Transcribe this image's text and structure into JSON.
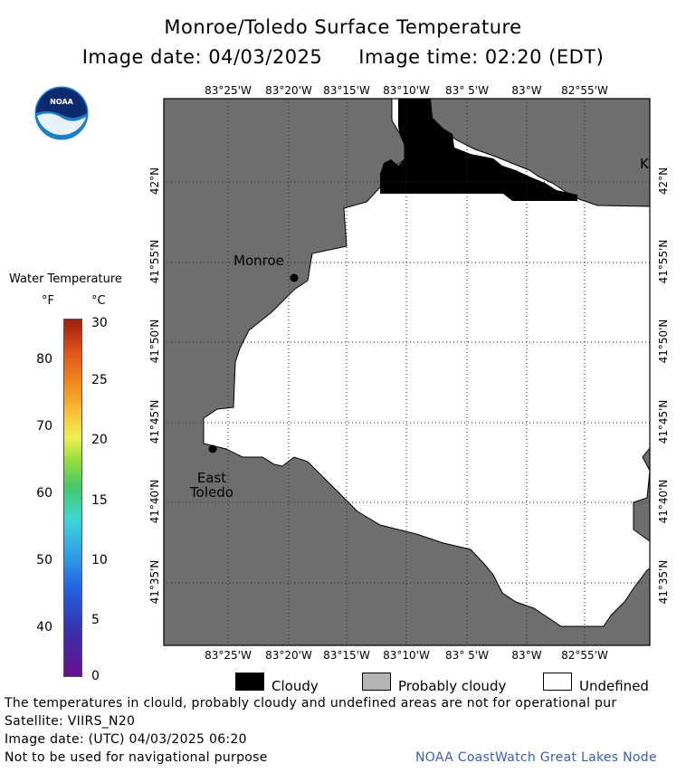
{
  "title": {
    "line1": "Monroe/Toledo Surface Temperature",
    "date_label": "Image date: 04/03/2025",
    "time_label": "Image time: 02:20 (EDT)"
  },
  "logo": {
    "icon": "noaa-logo-icon",
    "text": "NOAA"
  },
  "legend": {
    "title": "Water Temperature",
    "unit_f": "°F",
    "unit_c": "°C",
    "ticks_f": [
      "80",
      "70",
      "60",
      "50",
      "40"
    ],
    "ticks_c": [
      "30",
      "25",
      "20",
      "15",
      "10",
      "5",
      "0"
    ],
    "range_c": [
      0,
      30
    ]
  },
  "map": {
    "lon_labels": [
      "83°25'W",
      "83°20'W",
      "83°15'W",
      "83°10'W",
      "83° 5'W",
      "83°W",
      "82°55'W"
    ],
    "lat_labels": [
      "42°N",
      "41°55'N",
      "41°50'N",
      "41°45'N",
      "41°40'N",
      "41°35'N"
    ],
    "places": {
      "monroe": "Monroe",
      "east_toledo_1": "East",
      "east_toledo_2": "Toledo",
      "edge_label": "K"
    },
    "colors": {
      "land": "#6e6e6e",
      "cloud": "#000000",
      "water_undefined": "#ffffff"
    }
  },
  "key": {
    "cloudy": "Cloudy",
    "probably_cloudy": "Probably cloudy",
    "undefined": "Undefined",
    "colors": {
      "cloudy": "#000000",
      "probably_cloudy": "#b4b4b4",
      "undefined": "#ffffff"
    }
  },
  "footer": {
    "disclaimer": "The temperatures in clould, probably cloudy and undefined areas are not for operational pur",
    "satellite": "Satellite: VIIRS_N20",
    "utc_date": "Image date: (UTC) 04/03/2025  06:20",
    "nav_warning": "Not to be used for navigational purpose",
    "credit": "NOAA CoastWatch Great Lakes Node"
  }
}
